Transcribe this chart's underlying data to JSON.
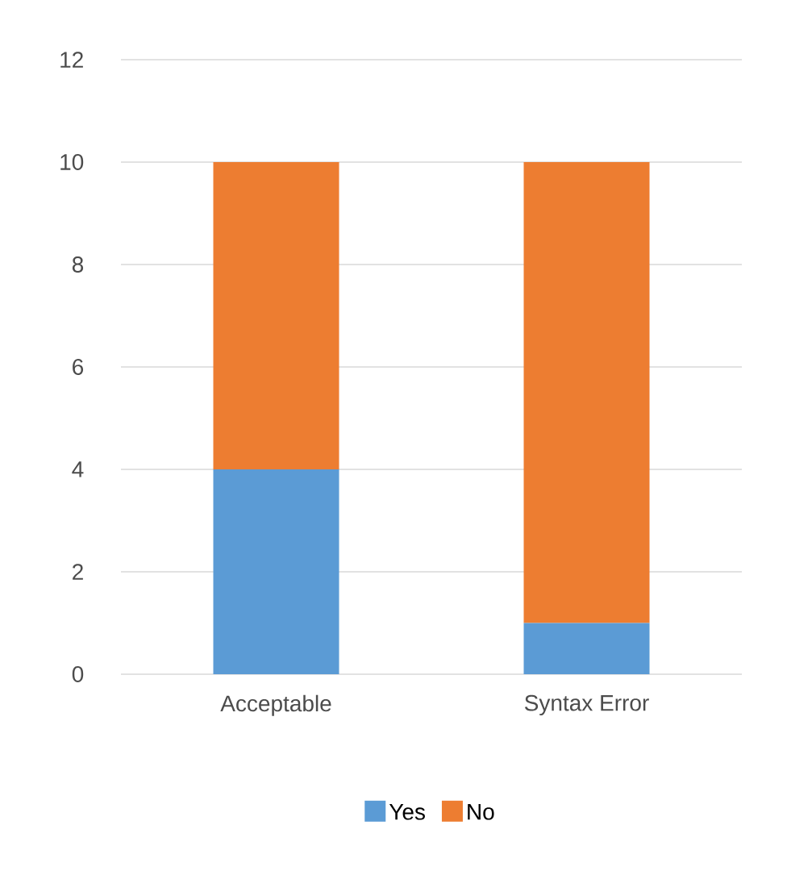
{
  "chart_data": {
    "type": "bar",
    "stacked": true,
    "categories": [
      "Acceptable",
      "Syntax Error"
    ],
    "series": [
      {
        "name": "Yes",
        "color": "#5b9bd5",
        "values": [
          4,
          1
        ]
      },
      {
        "name": "No",
        "color": "#ed7d31",
        "values": [
          6,
          9
        ]
      }
    ],
    "ylim": [
      0,
      12
    ],
    "yticks": [
      0,
      2,
      4,
      6,
      8,
      10,
      12
    ],
    "grid": "y",
    "legend": "bottom"
  }
}
